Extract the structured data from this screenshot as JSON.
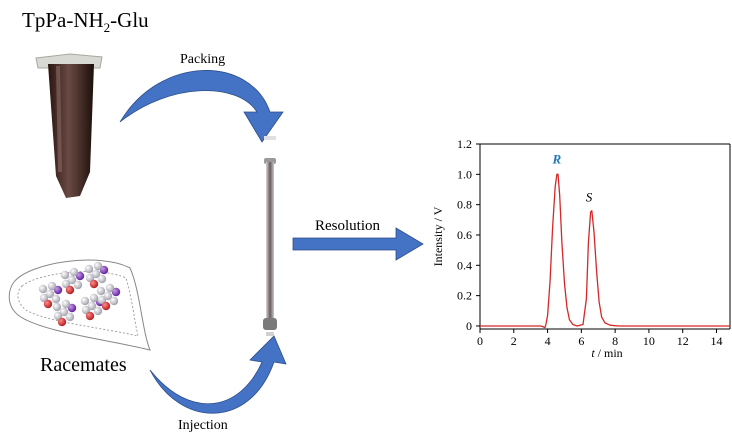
{
  "scheme": {
    "material_prefix": "TpPa-NH",
    "material_sub": "2",
    "material_suffix": "-Glu",
    "packing_label": "Packing",
    "injection_label": "Injection",
    "racemates_label": "Racemates",
    "resolution_label": "Resolution"
  },
  "colors": {
    "arrow": "#4472c4",
    "trace": "#d62728",
    "peak_r_label": "#1f77b4"
  },
  "chart_data": {
    "type": "line",
    "title": "",
    "xlabel_italic": "t",
    "xlabel_rest": " / min",
    "ylabel": "Intensity / V",
    "xlim": [
      0,
      14.8
    ],
    "ylim": [
      -0.02,
      1.2
    ],
    "xticks": [
      0,
      2,
      4,
      6,
      8,
      10,
      12,
      14
    ],
    "yticks": [
      0,
      0.2,
      0.4,
      0.6,
      0.8,
      1.0,
      1.2
    ],
    "ytick_labels": [
      "0",
      "0.2",
      "0.4",
      "0.6",
      "0.8",
      "1.0",
      "1.2"
    ],
    "grid": false,
    "series": [
      {
        "x": [
          0,
          3.6,
          3.85,
          3.9,
          4.0,
          4.15,
          4.3,
          4.45,
          4.55,
          4.62,
          4.72,
          4.85,
          5.0,
          5.15,
          5.3,
          5.5,
          5.75,
          6.1,
          6.3,
          6.42,
          6.55,
          6.62,
          6.75,
          6.9,
          7.05,
          7.2,
          7.4,
          7.7,
          8.2,
          9.0,
          14.8
        ],
        "y": [
          0,
          0,
          -0.01,
          0.01,
          0.07,
          0.3,
          0.65,
          0.92,
          1.0,
          1.0,
          0.86,
          0.55,
          0.28,
          0.12,
          0.04,
          0.01,
          0,
          0.01,
          0.18,
          0.55,
          0.75,
          0.76,
          0.62,
          0.36,
          0.16,
          0.06,
          0.02,
          0.005,
          0,
          0,
          0
        ]
      }
    ],
    "annotations": [
      {
        "text": "R",
        "x": 4.55,
        "y": 1.07,
        "style": "bold-italic",
        "color": "#1f77b4"
      },
      {
        "text": "S",
        "x": 6.45,
        "y": 0.82,
        "style": "italic",
        "color": "#000000"
      }
    ]
  }
}
